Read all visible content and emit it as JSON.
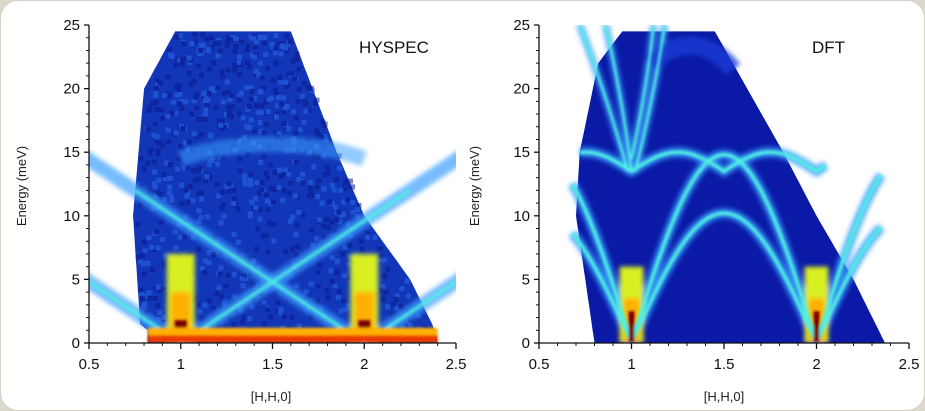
{
  "chart_data": [
    {
      "type": "heatmap",
      "title": "HYSPEC",
      "xlabel": "[H,H,0]",
      "ylabel": "Energy (meV)",
      "xlim": [
        0.5,
        2.5
      ],
      "ylim": [
        0,
        25
      ],
      "xticks": [
        "0.5",
        "1",
        "1.5",
        "2",
        "2.5"
      ],
      "yticks": [
        "0",
        "5",
        "10",
        "15",
        "20",
        "25"
      ],
      "colormap": [
        "#0a0a7a",
        "#1a3cd6",
        "#3aa0ff",
        "#4ff0e0",
        "#d8f020",
        "#ffb000",
        "#e83a00",
        "#7a0000"
      ],
      "coverage": {
        "x_min_by_energy": [
          [
            0,
            0.82
          ],
          [
            1,
            0.82
          ],
          [
            1.2,
            0.78
          ],
          [
            10,
            0.74
          ],
          [
            20,
            0.8
          ],
          [
            24.5,
            0.97
          ]
        ],
        "x_max_by_energy": [
          [
            0,
            2.4
          ],
          [
            1.2,
            2.38
          ],
          [
            5,
            2.25
          ],
          [
            10,
            2.0
          ],
          [
            15,
            1.85
          ],
          [
            24.5,
            1.6
          ]
        ]
      },
      "features": [
        {
          "label": "elastic line",
          "energy": 0.8,
          "x_range": [
            0.82,
            2.4
          ],
          "intensity": "high"
        },
        {
          "label": "acoustic branch",
          "center": 1.0,
          "slope_meV_per_rlu": 48,
          "max_energy": 15
        },
        {
          "label": "acoustic branch",
          "center": 2.0,
          "slope_meV_per_rlu": 48,
          "max_energy": 15
        },
        {
          "label": "optical band",
          "energy_range": [
            14,
            15.5
          ],
          "x_range": [
            1.0,
            2.0
          ]
        }
      ]
    },
    {
      "type": "heatmap",
      "title": "DFT",
      "xlabel": "[H,H,0]",
      "ylabel": "Energy (meV)",
      "xlim": [
        0.5,
        2.5
      ],
      "ylim": [
        0,
        25
      ],
      "xticks": [
        "0.5",
        "1",
        "1.5",
        "2",
        "2.5"
      ],
      "yticks": [
        "0",
        "5",
        "10",
        "15",
        "20",
        "25"
      ],
      "colormap": [
        "#0a0a7a",
        "#1a3cd6",
        "#3aa0ff",
        "#4ff0e0",
        "#d8f020",
        "#ffb000",
        "#e83a00",
        "#7a0000"
      ],
      "coverage": {
        "x_min_by_energy": [
          [
            0,
            0.8
          ],
          [
            10,
            0.7
          ],
          [
            15,
            0.72
          ],
          [
            22,
            0.82
          ],
          [
            24.5,
            0.95
          ]
        ],
        "x_max_by_energy": [
          [
            0,
            2.37
          ],
          [
            5,
            2.2
          ],
          [
            10,
            2.0
          ],
          [
            15,
            1.82
          ],
          [
            24.5,
            1.45
          ]
        ]
      },
      "branches": [
        {
          "label": "TA",
          "center": 1.0,
          "max_energy": 10.2,
          "period": 1.0
        },
        {
          "label": "LA",
          "center": 1.0,
          "max_energy": 14.8,
          "period": 1.0
        },
        {
          "label": "optical",
          "energy_range": [
            13,
            15
          ],
          "x_range": [
            1.0,
            2.0
          ]
        },
        {
          "label": "upper optical",
          "x_range": [
            0.7,
            1.05
          ],
          "energy_range": [
            13,
            25
          ]
        }
      ]
    }
  ]
}
